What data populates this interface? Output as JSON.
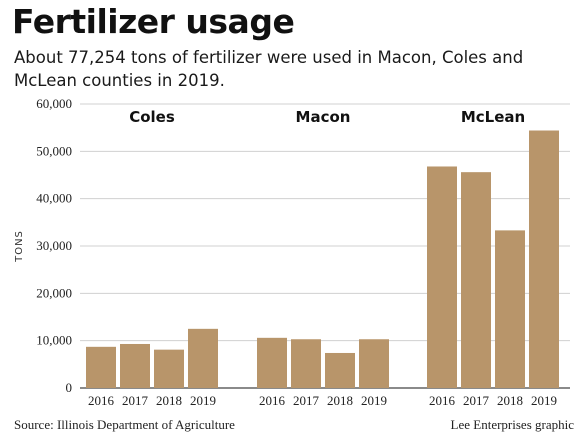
{
  "title": "Fertilizer usage",
  "subtitle": "About 77,254 tons of fertilizer were used in Macon, Coles and McLean counties in 2019.",
  "source": "Source: Illinois Department of Agriculture",
  "credit": "Lee Enterprises graphic",
  "colors": {
    "bar": "#b8956a",
    "grid": "#d0d0d0",
    "axis": "#444444"
  },
  "chart_data": {
    "type": "bar",
    "ylabel": "TONS",
    "ylim": [
      0,
      60000
    ],
    "yticks": [
      0,
      10000,
      20000,
      30000,
      40000,
      50000,
      60000
    ],
    "ytick_labels": [
      "0",
      "10,000",
      "20,000",
      "30,000",
      "40,000",
      "50,000",
      "60,000"
    ],
    "grid": true,
    "panels": [
      {
        "name": "Coles",
        "categories": [
          "2016",
          "2017",
          "2018",
          "2019"
        ],
        "values": [
          8700,
          9300,
          8100,
          12500
        ]
      },
      {
        "name": "Macon",
        "categories": [
          "2016",
          "2017",
          "2018",
          "2019"
        ],
        "values": [
          10600,
          10300,
          7400,
          10300
        ]
      },
      {
        "name": "McLean",
        "categories": [
          "2016",
          "2017",
          "2018",
          "2019"
        ],
        "values": [
          46800,
          45600,
          33300,
          54400
        ]
      }
    ]
  }
}
